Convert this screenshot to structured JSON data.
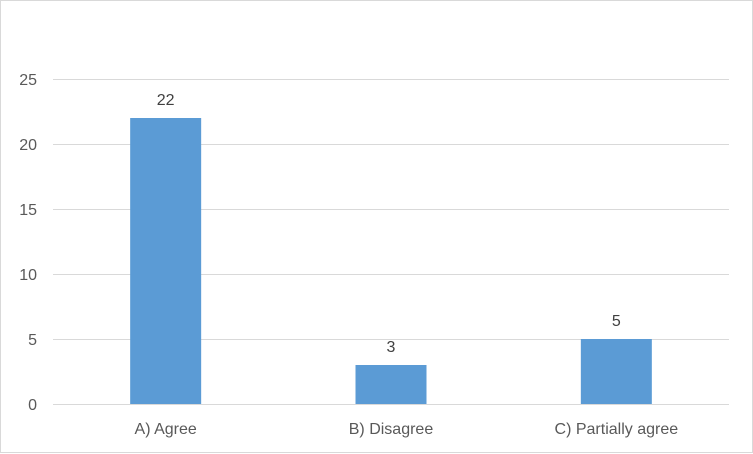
{
  "chart_data": {
    "type": "bar",
    "title": "",
    "xlabel": "",
    "ylabel": "",
    "categories": [
      "A) Agree",
      "B) Disagree",
      "C) Partially agree"
    ],
    "values": [
      22,
      3,
      5
    ],
    "data_labels": [
      "22",
      "3",
      "5"
    ],
    "ylim": [
      0,
      25
    ],
    "yticks": [
      0,
      5,
      10,
      15,
      20,
      25
    ],
    "ytick_labels": [
      "0",
      "5",
      "10",
      "15",
      "20",
      "25"
    ],
    "grid": true,
    "legend": "none",
    "colors": {
      "bar": "#5b9bd5",
      "grid": "#d9d9d9",
      "axis": "#d9d9d9"
    }
  }
}
